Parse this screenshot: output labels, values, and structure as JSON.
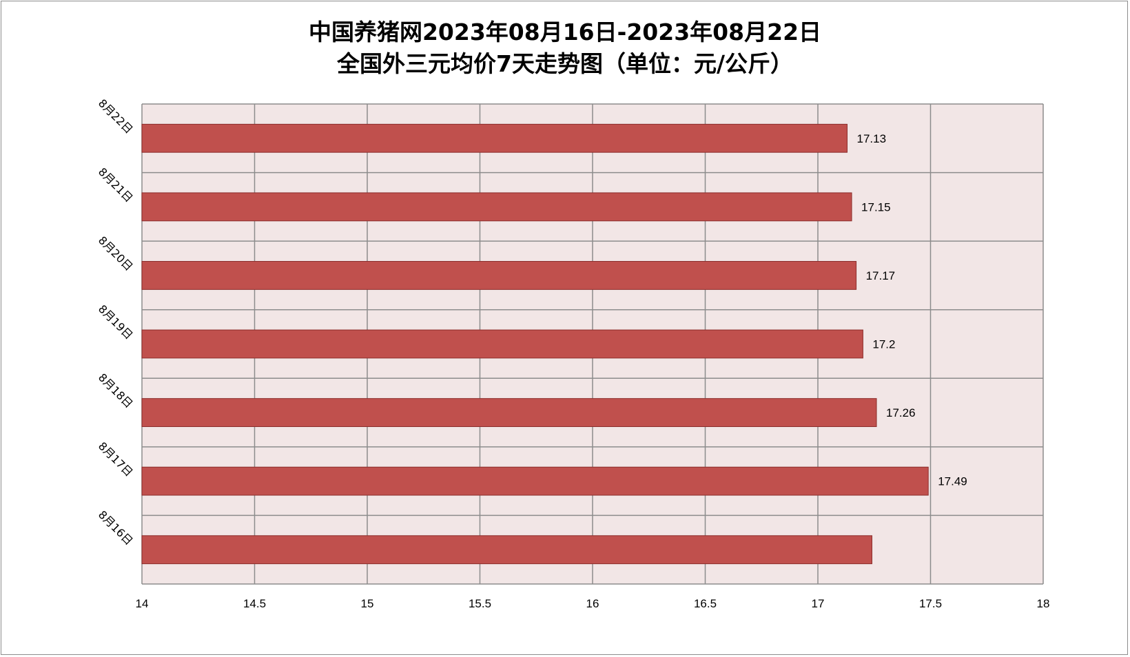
{
  "chart_data": {
    "type": "bar",
    "orientation": "horizontal",
    "title_line1": "中国养猪网2023年08月16日-2023年08月22日",
    "title_line2": "全国外三元均价7天走势图（单位：元/公斤）",
    "categories": [
      "8月16日",
      "8月17日",
      "8月18日",
      "8月19日",
      "8月20日",
      "8月21日",
      "8月22日"
    ],
    "values": [
      17.24,
      17.49,
      17.26,
      17.2,
      17.17,
      17.15,
      17.13
    ],
    "data_labels": [
      "",
      "17.49",
      "17.26",
      "17.2",
      "17.17",
      "17.15",
      "17.13"
    ],
    "xlim": [
      14,
      18
    ],
    "x_ticks": [
      "14",
      "14.5",
      "15",
      "15.5",
      "16",
      "16.5",
      "17",
      "17.5",
      "18"
    ],
    "grid": true,
    "legend": "none",
    "colors": {
      "bar": "#c0504d",
      "bar_border": "#8b2d2b",
      "plot_bg": "#f2e6e6",
      "grid": "#8c8c8c"
    }
  }
}
